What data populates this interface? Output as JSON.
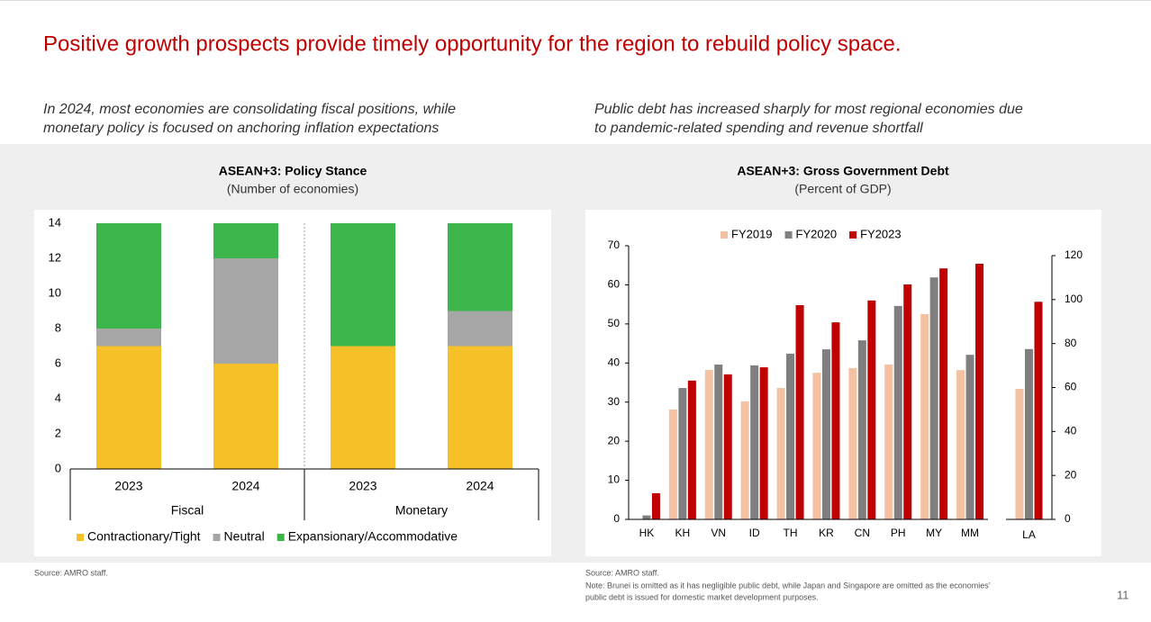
{
  "title": "Positive growth prospects provide timely opportunity for the region to rebuild policy space.",
  "left_subtitle": [
    "In 2024, most economies are consolidating fiscal positions, while",
    "monetary policy is focused on anchoring inflation expectations"
  ],
  "right_subtitle": [
    "Public debt has increased sharply for most regional economies due",
    "to pandemic-related spending and revenue shortfall"
  ],
  "left_source": "Source: AMRO staff.",
  "right_source": "Source: AMRO staff.",
  "right_note": [
    "Note: Brunei is omitted as it has negligible public debt, while Japan and Singapore are omitted as the economies’",
    "public debt is issued for domestic market development  purposes."
  ],
  "page_number": "11",
  "chart_data": [
    {
      "type": "bar",
      "stacked": true,
      "title": "ASEAN+3: Policy Stance",
      "subtitle": "(Number of economies)",
      "categories": [
        "2023",
        "2024",
        "2023",
        "2024"
      ],
      "groups": [
        "Fiscal",
        "Monetary"
      ],
      "series": [
        {
          "name": "Contractionary/Tight",
          "color": "#f6c028",
          "values": [
            7,
            6,
            7,
            7
          ]
        },
        {
          "name": "Neutral",
          "color": "#a6a6a6",
          "values": [
            1,
            6,
            0,
            2
          ]
        },
        {
          "name": "Expansionary/Accommodative",
          "color": "#3cb54a",
          "values": [
            6,
            2,
            7,
            5
          ]
        }
      ],
      "ylim": [
        0,
        14
      ],
      "yticks": [
        0,
        2,
        4,
        6,
        8,
        10,
        12,
        14
      ],
      "legend": "bottom"
    },
    {
      "type": "bar",
      "stacked": false,
      "title": "ASEAN+3: Gross Government Debt",
      "subtitle": "(Percent of GDP)",
      "categories": [
        "HK",
        "KH",
        "VN",
        "ID",
        "TH",
        "KR",
        "CN",
        "PH",
        "MY",
        "MM"
      ],
      "y2_categories": [
        "LA"
      ],
      "series": [
        {
          "name": "FY2019",
          "color": "#f4c1a3",
          "values": [
            null,
            28.1,
            38.2,
            30.2,
            33.6,
            37.5,
            38.7,
            39.6,
            52.5,
            38.2
          ],
          "y2_values": [
            59.4
          ]
        },
        {
          "name": "FY2020",
          "color": "#7f7f7f",
          "values": [
            1,
            33.6,
            39.6,
            39.4,
            42.4,
            43.5,
            45.8,
            54.6,
            61.9,
            42.1
          ],
          "y2_values": [
            77.5
          ]
        },
        {
          "name": "FY2023",
          "color": "#c00000",
          "values": [
            6.7,
            35.5,
            37.1,
            38.9,
            54.8,
            50.4,
            56,
            60.1,
            64.2,
            65.4
          ],
          "y2_values": [
            99
          ]
        }
      ],
      "ylim": [
        0,
        70
      ],
      "yticks": [
        0,
        10,
        20,
        30,
        40,
        50,
        60,
        70
      ],
      "y2lim": [
        0,
        120
      ],
      "y2ticks": [
        0,
        20,
        40,
        60,
        80,
        100,
        120
      ],
      "legend": "top"
    }
  ]
}
